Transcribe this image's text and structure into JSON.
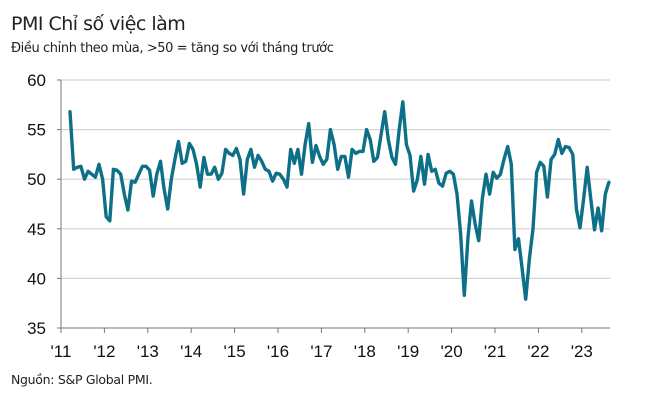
{
  "chart_data": {
    "type": "line",
    "title": "PMI Chỉ số việc làm",
    "subtitle": "Điều chỉnh theo mùa, >50 = tăng so với tháng trước",
    "source": "Nguồn: S&P Global PMI.",
    "xlabel": "",
    "ylabel": "",
    "x_start": "2011-03",
    "x_end": "2023-08",
    "frequency": "monthly",
    "x_tick_labels": [
      "'11",
      "'12",
      "'13",
      "'14",
      "'15",
      "'16",
      "'17",
      "'18",
      "'19",
      "'20",
      "'21",
      "'22",
      "'23"
    ],
    "y_tick_labels": [
      "35",
      "40",
      "45",
      "50",
      "55",
      "60"
    ],
    "ylim": [
      35,
      60
    ],
    "grid": "horizontal",
    "line_color": "#0e7088",
    "values": [
      56.8,
      51.0,
      51.2,
      51.3,
      50.0,
      50.8,
      50.5,
      50.2,
      51.5,
      50.0,
      46.2,
      45.8,
      51.0,
      50.9,
      50.5,
      48.5,
      46.9,
      49.8,
      49.7,
      50.5,
      51.3,
      51.3,
      50.9,
      48.3,
      50.5,
      51.8,
      49.0,
      47.0,
      50.0,
      52.0,
      53.8,
      51.6,
      51.8,
      53.6,
      53.0,
      51.5,
      49.2,
      52.2,
      50.5,
      50.5,
      51.2,
      50.0,
      50.6,
      53.0,
      52.6,
      52.4,
      53.1,
      52.0,
      48.5,
      52.0,
      53.0,
      51.2,
      52.4,
      51.8,
      51.0,
      50.8,
      49.8,
      50.6,
      50.5,
      50.0,
      49.2,
      53.0,
      51.6,
      53.0,
      50.5,
      53.5,
      55.6,
      51.7,
      53.4,
      52.3,
      51.5,
      52.0,
      55.0,
      53.5,
      51.0,
      52.3,
      52.3,
      50.2,
      53.0,
      52.6,
      52.8,
      52.8,
      55.0,
      54.0,
      51.8,
      52.2,
      54.5,
      56.8,
      54.0,
      52.2,
      51.5,
      55.0,
      57.8,
      53.5,
      52.4,
      48.8,
      49.9,
      52.3,
      49.5,
      52.5,
      50.8,
      51.0,
      49.6,
      49.3,
      50.6,
      50.8,
      50.5,
      48.5,
      44.5,
      38.3,
      44.0,
      47.8,
      45.5,
      43.8,
      48.0,
      50.5,
      48.5,
      50.7,
      50.1,
      50.5,
      52.0,
      53.3,
      51.5,
      42.9,
      44.0,
      41.0,
      37.9,
      42.0,
      45.0,
      50.7,
      51.7,
      51.3,
      48.2,
      52.0,
      52.5,
      54.0,
      52.6,
      53.3,
      53.2,
      52.5,
      47.0,
      45.1,
      48.0,
      51.2,
      48.0,
      44.9,
      47.1,
      44.8,
      48.5,
      49.7
    ]
  }
}
